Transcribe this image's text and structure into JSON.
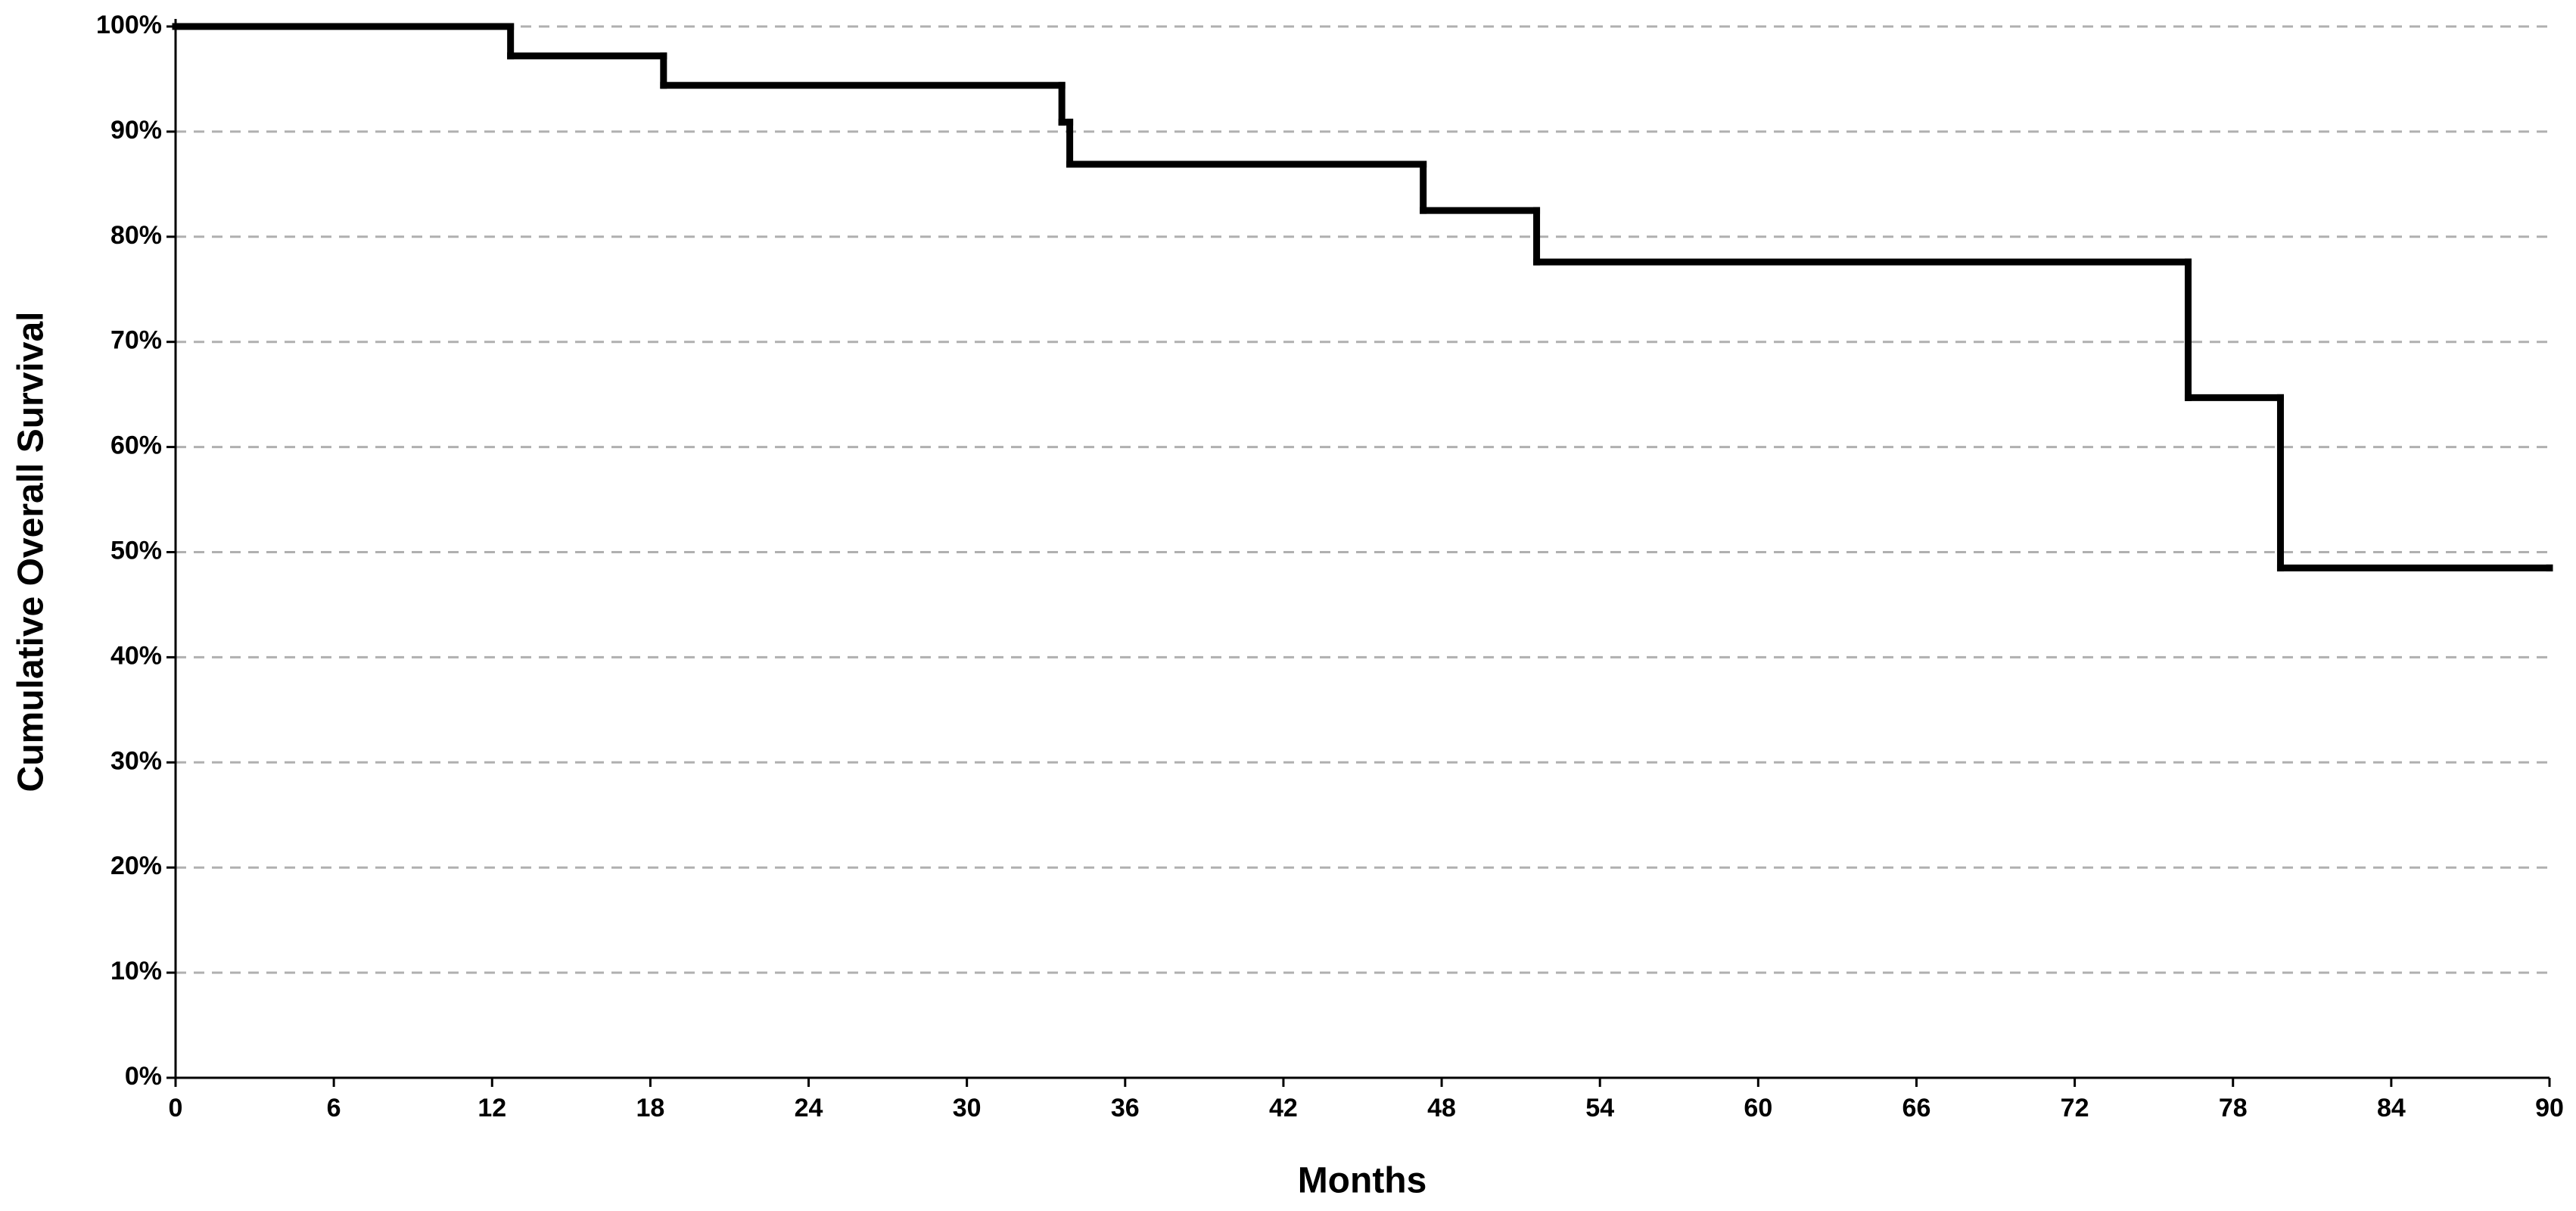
{
  "chart_data": {
    "type": "step",
    "x_label": "Months",
    "y_label": "Cumulative Overall Survival",
    "x": [
      0,
      12.7,
      18.5,
      33.6,
      33.9,
      47.3,
      51.6,
      76.3,
      79.8,
      90
    ],
    "values": [
      100,
      97.2,
      94.4,
      90.9,
      86.9,
      82.5,
      77.6,
      64.7,
      48.5,
      48.5
    ],
    "color": "#000000",
    "xlim": [
      0,
      90
    ],
    "xticks": [
      0,
      6,
      12,
      18,
      24,
      30,
      36,
      42,
      48,
      54,
      60,
      66,
      72,
      78,
      84,
      90
    ],
    "ylim": [
      0,
      100
    ],
    "yticks": [
      {
        "value": 0,
        "label": "0%"
      },
      {
        "value": 10,
        "label": "10%"
      },
      {
        "value": 20,
        "label": "20%"
      },
      {
        "value": 30,
        "label": "30%"
      },
      {
        "value": 40,
        "label": "40%"
      },
      {
        "value": 50,
        "label": "50%"
      },
      {
        "value": 60,
        "label": "60%"
      },
      {
        "value": 70,
        "label": "70%"
      },
      {
        "value": 80,
        "label": "80%"
      },
      {
        "value": 90,
        "label": "90%"
      },
      {
        "value": 100,
        "label": "100%"
      }
    ],
    "grid": true
  }
}
